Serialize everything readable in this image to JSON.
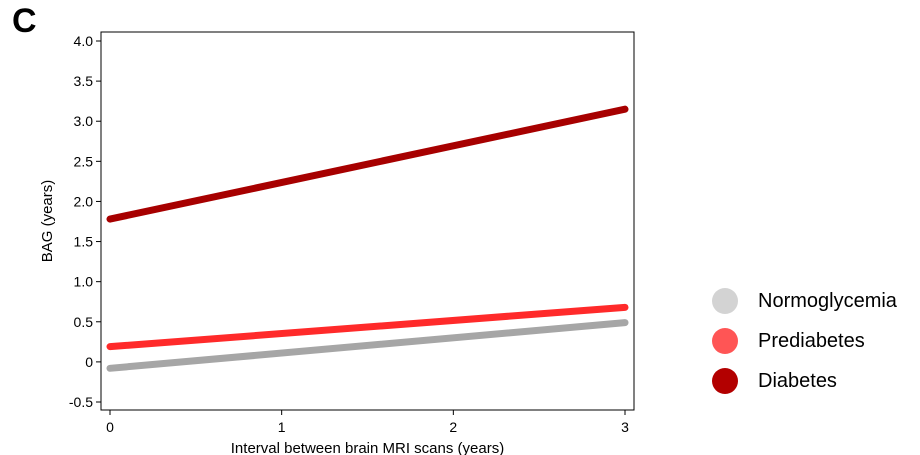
{
  "panel_label": "C",
  "colors": {
    "Normoglycemia": "#a6a6a6",
    "Prediabetes": "#ff2a2a",
    "Diabetes": "#a70000"
  },
  "legend_colors": {
    "Normoglycemia": "#d3d3d3",
    "Prediabetes": "#ff5555",
    "Diabetes": "#b30000"
  },
  "chart_data": {
    "type": "line",
    "title": "",
    "xlabel": "Interval between brain MRI scans (years)",
    "ylabel": "BAG (years)",
    "xlim": [
      0,
      3
    ],
    "ylim": [
      -0.5,
      4.0
    ],
    "xticks": [
      0,
      1,
      2,
      3
    ],
    "xtick_labels": [
      "0",
      "1",
      "2",
      "3"
    ],
    "yticks": [
      -0.5,
      0,
      0.5,
      1.0,
      1.5,
      2.0,
      2.5,
      3.0,
      3.5,
      4.0
    ],
    "ytick_labels": [
      "-0.5",
      "0",
      "0.5",
      "1.0",
      "1.5",
      "2.0",
      "2.5",
      "3.0",
      "3.5",
      "4.0"
    ],
    "grid": false,
    "legend_position": "right",
    "series": [
      {
        "name": "Normoglycemia",
        "x": [
          0,
          3
        ],
        "y": [
          -0.08,
          0.49
        ]
      },
      {
        "name": "Prediabetes",
        "x": [
          0,
          3
        ],
        "y": [
          0.19,
          0.68
        ]
      },
      {
        "name": "Diabetes",
        "x": [
          0,
          3
        ],
        "y": [
          1.78,
          3.15
        ]
      }
    ]
  }
}
